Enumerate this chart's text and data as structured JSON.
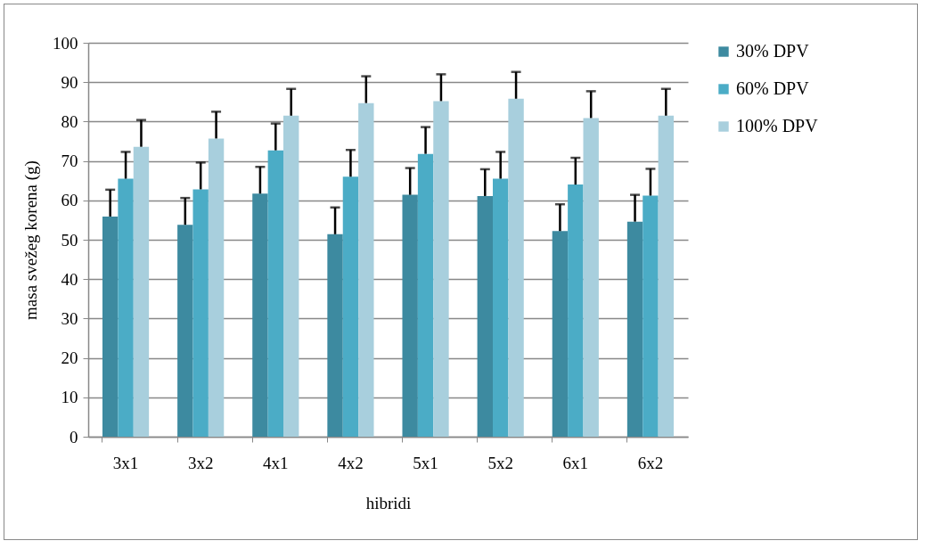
{
  "chart_data": {
    "type": "bar",
    "xlabel": "hibridi",
    "ylabel": "masa svežeg korena (g)",
    "categories": [
      "3x1",
      "3x2",
      "4x1",
      "4x2",
      "5x1",
      "5x2",
      "6x1",
      "6x2"
    ],
    "series": [
      {
        "name": "30% DPV",
        "color": "#3d8aa0",
        "values": [
          55.9,
          53.8,
          61.7,
          51.4,
          61.4,
          61.1,
          52.2,
          54.6
        ],
        "errors": [
          [
            55.9,
            62.7
          ],
          [
            53.8,
            60.6
          ],
          [
            61.7,
            68.5
          ],
          [
            51.4,
            58.2
          ],
          [
            61.4,
            68.2
          ],
          [
            61.1,
            67.9
          ],
          [
            52.2,
            59.0
          ],
          [
            54.6,
            61.4
          ]
        ]
      },
      {
        "name": "60%  DPV",
        "color": "#4bacc6",
        "values": [
          65.5,
          62.8,
          72.7,
          66.0,
          71.8,
          65.5,
          64.0,
          61.2
        ],
        "errors": [
          [
            65.5,
            72.3
          ],
          [
            62.8,
            69.6
          ],
          [
            72.7,
            79.5
          ],
          [
            66.0,
            72.8
          ],
          [
            71.8,
            78.6
          ],
          [
            65.5,
            72.3
          ],
          [
            64.0,
            70.8
          ],
          [
            61.2,
            68.0
          ]
        ]
      },
      {
        "name": "100%  DPV",
        "color": "#a8cfdd",
        "values": [
          73.6,
          75.7,
          81.5,
          84.7,
          85.2,
          85.8,
          80.9,
          81.5
        ],
        "errors": [
          [
            73.6,
            80.4
          ],
          [
            75.7,
            82.5
          ],
          [
            81.5,
            88.3
          ],
          [
            84.7,
            91.5
          ],
          [
            85.2,
            92.0
          ],
          [
            85.8,
            92.6
          ],
          [
            80.9,
            87.7
          ],
          [
            81.5,
            88.3
          ]
        ]
      }
    ],
    "ylim": [
      0,
      100
    ],
    "yticks": [
      0,
      10,
      20,
      30,
      40,
      50,
      60,
      70,
      80,
      90,
      100
    ],
    "grid": "y",
    "legend": "right"
  }
}
